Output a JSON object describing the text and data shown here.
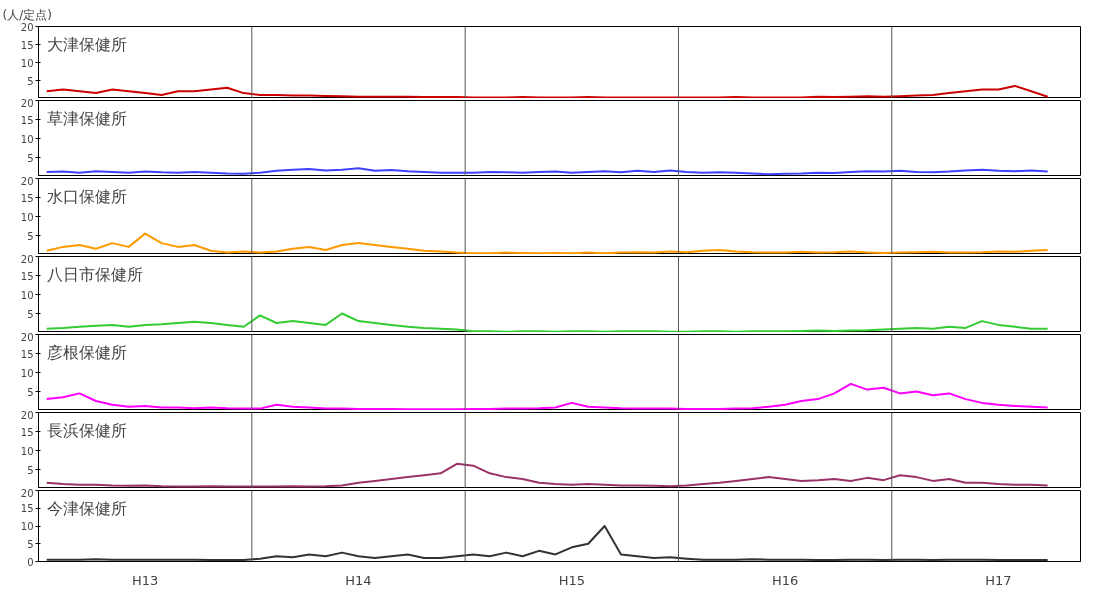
{
  "chart_data": [
    {
      "type": "line",
      "title": "大津保健所",
      "ylabel": "(人/定点)",
      "tick_labels": "y",
      "ylim": [
        0,
        20
      ],
      "yticks": [
        5,
        10,
        15,
        20
      ],
      "categories": [
        null,
        null,
        null,
        null,
        null,
        null,
        null,
        null,
        null,
        null,
        null,
        null,
        null,
        null,
        null,
        null,
        null,
        null,
        null,
        null,
        null,
        null,
        null,
        null,
        null,
        null,
        null,
        null,
        null,
        null,
        null,
        null,
        null,
        null,
        null,
        null,
        null,
        null,
        null,
        null,
        null,
        null,
        null,
        null,
        null,
        null,
        null,
        null,
        null,
        null,
        null,
        null,
        null,
        null,
        null,
        null,
        null,
        null,
        null,
        null,
        null,
        null
      ],
      "series": [
        {
          "color": "#cc0000",
          "values": [
            2,
            2.5,
            2,
            1.5,
            2.5,
            2,
            1.5,
            1,
            2,
            2,
            2.5,
            3,
            1.5,
            1,
            1,
            0.8,
            0.8,
            0.7,
            0.6,
            0.5,
            0.5,
            0.5,
            0.5,
            0.4,
            0.4,
            0.4,
            0.3,
            0.3,
            0.3,
            0.4,
            0.3,
            0.3,
            0.3,
            0.4,
            0.3,
            0.3,
            0.3,
            0.3,
            0.3,
            0.3,
            0.3,
            0.3,
            0.4,
            0.3,
            0.3,
            0.3,
            0.3,
            0.5,
            0.4,
            0.5,
            0.6,
            0.5,
            0.6,
            0.8,
            1,
            1.5,
            2,
            2.5,
            2.5,
            3.5,
            2,
            0.5
          ]
        }
      ]
    },
    {
      "type": "line",
      "title": "草津保健所",
      "tick_labels": "y",
      "ylim": [
        0,
        20
      ],
      "yticks": [
        5,
        10,
        15,
        20
      ],
      "categories": [
        null,
        null,
        null,
        null,
        null,
        null,
        null,
        null,
        null,
        null,
        null,
        null,
        null,
        null,
        null,
        null,
        null,
        null,
        null,
        null,
        null,
        null,
        null,
        null,
        null,
        null,
        null,
        null,
        null,
        null,
        null,
        null,
        null,
        null,
        null,
        null,
        null,
        null,
        null,
        null,
        null,
        null,
        null,
        null,
        null,
        null,
        null,
        null,
        null,
        null,
        null,
        null,
        null,
        null,
        null,
        null,
        null,
        null,
        null,
        null,
        null,
        null
      ],
      "series": [
        {
          "color": "#4040ff",
          "values": [
            1.2,
            1.3,
            1,
            1.4,
            1.2,
            1,
            1.3,
            1.1,
            1,
            1.2,
            1,
            0.8,
            0.7,
            1,
            1.5,
            1.8,
            2,
            1.6,
            1.8,
            2.2,
            1.5,
            1.7,
            1.4,
            1.2,
            1,
            1,
            1,
            1.2,
            1.1,
            1,
            1.2,
            1.3,
            1,
            1.2,
            1.4,
            1.1,
            1.5,
            1.2,
            1.6,
            1.2,
            1,
            1.1,
            1,
            0.8,
            0.6,
            0.7,
            0.8,
            1,
            0.9,
            1.2,
            1.4,
            1.3,
            1.5,
            1.2,
            1.1,
            1.3,
            1.6,
            1.8,
            1.5,
            1.4,
            1.6,
            1.3
          ]
        }
      ]
    },
    {
      "type": "line",
      "title": "水口保健所",
      "tick_labels": "y",
      "ylim": [
        0,
        20
      ],
      "yticks": [
        5,
        10,
        15,
        20
      ],
      "categories": [
        null,
        null,
        null,
        null,
        null,
        null,
        null,
        null,
        null,
        null,
        null,
        null,
        null,
        null,
        null,
        null,
        null,
        null,
        null,
        null,
        null,
        null,
        null,
        null,
        null,
        null,
        null,
        null,
        null,
        null,
        null,
        null,
        null,
        null,
        null,
        null,
        null,
        null,
        null,
        null,
        null,
        null,
        null,
        null,
        null,
        null,
        null,
        null,
        null,
        null,
        null,
        null,
        null,
        null,
        null,
        null,
        null,
        null,
        null,
        null,
        null,
        null
      ],
      "series": [
        {
          "color": "#ff9900",
          "values": [
            1,
            2,
            2.5,
            1.5,
            3,
            2,
            5.5,
            3,
            2,
            2.5,
            1,
            0.5,
            0.8,
            0.5,
            0.8,
            1.5,
            2,
            1.2,
            2.5,
            3,
            2.5,
            2,
            1.5,
            1,
            0.8,
            0.5,
            0.3,
            0.3,
            0.5,
            0.4,
            0.3,
            0.4,
            0.3,
            0.5,
            0.3,
            0.5,
            0.6,
            0.5,
            0.8,
            0.6,
            1,
            1.2,
            0.8,
            0.6,
            0.5,
            0.5,
            0.7,
            0.5,
            0.6,
            0.8,
            0.5,
            0.4,
            0.5,
            0.6,
            0.7,
            0.5,
            0.5,
            0.6,
            0.8,
            0.7,
            1,
            1.2
          ]
        }
      ]
    },
    {
      "type": "line",
      "title": "八日市保健所",
      "tick_labels": "y",
      "ylim": [
        0,
        20
      ],
      "yticks": [
        5,
        10,
        15,
        20
      ],
      "categories": [
        null,
        null,
        null,
        null,
        null,
        null,
        null,
        null,
        null,
        null,
        null,
        null,
        null,
        null,
        null,
        null,
        null,
        null,
        null,
        null,
        null,
        null,
        null,
        null,
        null,
        null,
        null,
        null,
        null,
        null,
        null,
        null,
        null,
        null,
        null,
        null,
        null,
        null,
        null,
        null,
        null,
        null,
        null,
        null,
        null,
        null,
        null,
        null,
        null,
        null,
        null,
        null,
        null,
        null,
        null,
        null,
        null,
        null,
        null,
        null,
        null,
        null
      ],
      "series": [
        {
          "color": "#33cc33",
          "values": [
            1,
            1.2,
            1.5,
            1.8,
            2,
            1.5,
            2,
            2.2,
            2.5,
            2.8,
            2.5,
            2,
            1.5,
            4.5,
            2.5,
            3,
            2.5,
            2,
            5,
            3,
            2.5,
            2,
            1.5,
            1.2,
            1,
            0.8,
            0.3,
            0.3,
            0.2,
            0.3,
            0.3,
            0.2,
            0.3,
            0.3,
            0.2,
            0.3,
            0.3,
            0.3,
            0.2,
            0.2,
            0.3,
            0.3,
            0.2,
            0.3,
            0.3,
            0.3,
            0.4,
            0.5,
            0.4,
            0.5,
            0.6,
            0.8,
            1,
            1.2,
            1,
            1.5,
            1.2,
            3,
            2,
            1.5,
            1,
            1
          ]
        }
      ]
    },
    {
      "type": "line",
      "title": "彦根保健所",
      "tick_labels": "y",
      "ylim": [
        0,
        20
      ],
      "yticks": [
        5,
        10,
        15,
        20
      ],
      "categories": [
        null,
        null,
        null,
        null,
        null,
        null,
        null,
        null,
        null,
        null,
        null,
        null,
        null,
        null,
        null,
        null,
        null,
        null,
        null,
        null,
        null,
        null,
        null,
        null,
        null,
        null,
        null,
        null,
        null,
        null,
        null,
        null,
        null,
        null,
        null,
        null,
        null,
        null,
        null,
        null,
        null,
        null,
        null,
        null,
        null,
        null,
        null,
        null,
        null,
        null,
        null,
        null,
        null,
        null,
        null,
        null,
        null,
        null,
        null,
        null,
        null,
        null
      ],
      "series": [
        {
          "color": "#ff00ff",
          "values": [
            3,
            3.5,
            4.5,
            2.5,
            1.5,
            1,
            1.2,
            0.8,
            0.8,
            0.6,
            0.8,
            0.6,
            0.5,
            0.5,
            1.5,
            1,
            0.8,
            0.5,
            0.5,
            0.4,
            0.4,
            0.4,
            0.3,
            0.3,
            0.3,
            0.3,
            0.4,
            0.4,
            0.5,
            0.5,
            0.6,
            0.8,
            2,
            1,
            0.8,
            0.6,
            0.5,
            0.5,
            0.5,
            0.4,
            0.4,
            0.4,
            0.5,
            0.6,
            1,
            1.5,
            2.5,
            3,
            4.5,
            7,
            5.5,
            6,
            4.5,
            5,
            4,
            4.5,
            3,
            2,
            1.5,
            1.2,
            1,
            0.8
          ]
        }
      ]
    },
    {
      "type": "line",
      "title": "長浜保健所",
      "tick_labels": "y",
      "ylim": [
        0,
        20
      ],
      "yticks": [
        5,
        10,
        15,
        20
      ],
      "categories": [
        null,
        null,
        null,
        null,
        null,
        null,
        null,
        null,
        null,
        null,
        null,
        null,
        null,
        null,
        null,
        null,
        null,
        null,
        null,
        null,
        null,
        null,
        null,
        null,
        null,
        null,
        null,
        null,
        null,
        null,
        null,
        null,
        null,
        null,
        null,
        null,
        null,
        null,
        null,
        null,
        null,
        null,
        null,
        null,
        null,
        null,
        null,
        null,
        null,
        null,
        null,
        null,
        null,
        null,
        null,
        null,
        null,
        null,
        null,
        null,
        null,
        null
      ],
      "series": [
        {
          "color": "#993366",
          "values": [
            1.5,
            1.2,
            1,
            1,
            0.8,
            0.7,
            0.8,
            0.6,
            0.5,
            0.5,
            0.6,
            0.5,
            0.5,
            0.5,
            0.5,
            0.6,
            0.5,
            0.6,
            0.8,
            1.5,
            2,
            2.5,
            3,
            3.5,
            4,
            6.5,
            6,
            4,
            3,
            2.5,
            1.5,
            1.2,
            1,
            1.2,
            1,
            0.8,
            0.8,
            0.7,
            0.6,
            0.8,
            1.2,
            1.5,
            2,
            2.5,
            3,
            2.5,
            2,
            2.2,
            2.5,
            2,
            2.8,
            2.2,
            3.5,
            3,
            2,
            2.5,
            1.5,
            1.5,
            1.2,
            1,
            1,
            0.8
          ]
        }
      ]
    },
    {
      "type": "line",
      "title": "今津保健所",
      "ylim": [
        0,
        20
      ],
      "yticks": [
        0,
        5,
        10,
        15,
        20
      ],
      "categories": [
        null,
        null,
        null,
        null,
        null,
        null,
        "H13",
        null,
        null,
        null,
        null,
        null,
        null,
        null,
        null,
        null,
        null,
        null,
        null,
        "H14",
        null,
        null,
        null,
        null,
        null,
        null,
        null,
        null,
        null,
        null,
        null,
        null,
        "H15",
        null,
        null,
        null,
        null,
        null,
        null,
        null,
        null,
        null,
        null,
        null,
        null,
        "H16",
        null,
        null,
        null,
        null,
        null,
        null,
        null,
        null,
        null,
        null,
        null,
        null,
        "H17",
        null,
        null,
        null
      ],
      "series": [
        {
          "color": "#333333",
          "values": [
            0.5,
            0.5,
            0.5,
            0.6,
            0.5,
            0.5,
            0.5,
            0.5,
            0.5,
            0.5,
            0.4,
            0.4,
            0.4,
            0.8,
            1.5,
            1.2,
            2,
            1.5,
            2.5,
            1.5,
            1,
            1.5,
            2,
            1,
            1,
            1.5,
            2,
            1.5,
            2.5,
            1.5,
            3,
            2,
            4,
            5,
            10,
            2,
            1.5,
            1,
            1.2,
            0.8,
            0.5,
            0.5,
            0.5,
            0.6,
            0.5,
            0.5,
            0.5,
            0.4,
            0.4,
            0.5,
            0.5,
            0.4,
            0.5,
            0.5,
            0.4,
            0.5,
            0.5,
            0.5,
            0.4,
            0.4,
            0.4,
            0.4
          ]
        }
      ]
    }
  ]
}
